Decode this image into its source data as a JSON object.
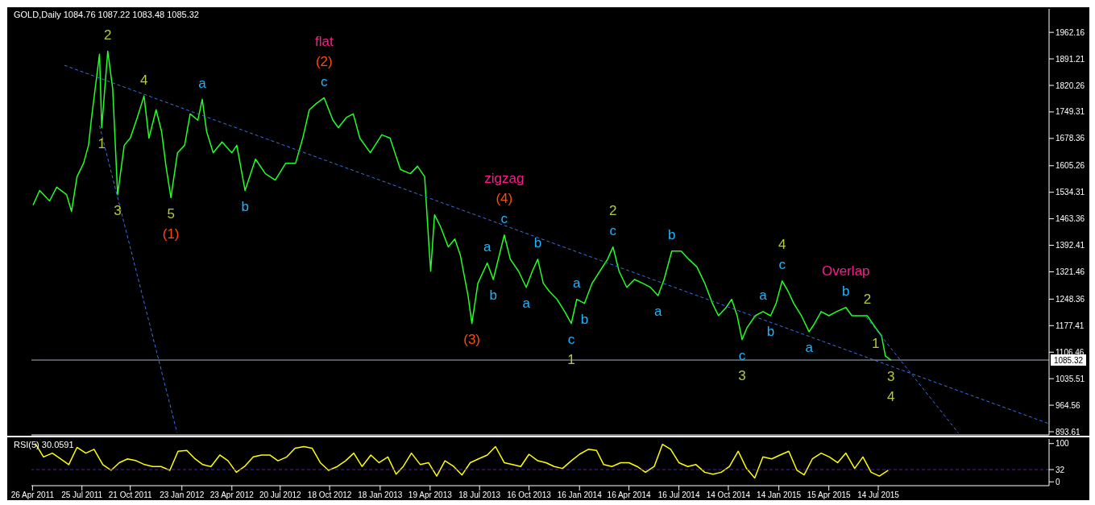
{
  "chart_data": [
    {
      "type": "line",
      "title": "GOLD,Daily 1084.76 1087.22 1083.48 1085.32",
      "marker": "none",
      "tick_labels": "y",
      "xlim": [
        "2011-04-24",
        "2016-05-20"
      ],
      "ylim": [
        885,
        2025
      ],
      "yticks": [
        893.61,
        964.56,
        1035.51,
        1106.46,
        1177.41,
        1248.36,
        1321.46,
        1392.41,
        1463.36,
        1534.31,
        1605.26,
        1678.36,
        1749.31,
        1820.26,
        1891.21,
        1962.16
      ],
      "series": [
        {
          "color": "#22ff22",
          "line_style": "solid",
          "x": [
            "2011-04-27",
            "2011-05-09",
            "2011-05-27",
            "2011-06-09",
            "2011-06-27",
            "2011-07-06",
            "2011-07-16",
            "2011-07-28",
            "2011-08-06",
            "2011-08-11",
            "2011-08-18",
            "2011-08-26",
            "2011-08-30",
            "2011-09-10",
            "2011-09-19",
            "2011-09-28",
            "2011-10-10",
            "2011-10-21",
            "2011-11-03",
            "2011-11-15",
            "2011-11-24",
            "2011-12-07",
            "2011-12-17",
            "2011-12-25",
            "2012-01-03",
            "2012-01-15",
            "2012-01-28",
            "2012-02-07",
            "2012-02-21",
            "2012-02-29",
            "2012-03-08",
            "2012-03-20",
            "2012-04-05",
            "2012-04-23",
            "2012-05-02",
            "2012-05-17",
            "2012-06-05",
            "2012-06-23",
            "2012-07-11",
            "2012-07-30",
            "2012-08-17",
            "2012-08-30",
            "2012-09-11",
            "2012-09-24",
            "2012-10-08",
            "2012-10-24",
            "2012-11-03",
            "2012-11-18",
            "2012-11-30",
            "2012-12-12",
            "2012-12-31",
            "2013-01-21",
            "2013-02-05",
            "2013-02-24",
            "2013-03-14",
            "2013-03-27",
            "2013-04-09",
            "2013-04-17",
            "2013-04-20",
            "2013-04-27",
            "2013-05-08",
            "2013-05-22",
            "2013-06-03",
            "2013-06-13",
            "2013-06-27",
            "2013-07-04",
            "2013-07-15",
            "2013-08-01",
            "2013-08-12",
            "2013-09-01",
            "2013-09-12",
            "2013-09-27",
            "2013-10-11",
            "2013-10-22",
            "2013-11-01",
            "2013-11-11",
            "2013-11-22",
            "2013-12-06",
            "2013-12-20",
            "2014-01-01",
            "2014-01-11",
            "2014-01-25",
            "2014-02-08",
            "2014-02-22",
            "2014-03-08",
            "2014-03-18",
            "2014-03-29",
            "2014-04-12",
            "2014-04-26",
            "2014-05-11",
            "2014-05-25",
            "2014-06-08",
            "2014-06-19",
            "2014-07-03",
            "2014-07-20",
            "2014-08-03",
            "2014-08-18",
            "2014-09-01",
            "2014-09-15",
            "2014-09-26",
            "2014-10-10",
            "2014-10-20",
            "2014-10-30",
            "2014-11-08",
            "2014-11-17",
            "2014-12-02",
            "2014-12-16",
            "2014-12-30",
            "2015-01-09",
            "2015-01-20",
            "2015-01-31",
            "2015-02-10",
            "2015-02-24",
            "2015-03-10",
            "2015-03-20",
            "2015-04-01",
            "2015-04-15",
            "2015-04-29",
            "2015-05-16",
            "2015-05-27",
            "2015-06-10",
            "2015-06-24",
            "2015-07-09",
            "2015-07-20",
            "2015-07-27",
            "2015-08-06"
          ],
          "values": [
            1500,
            1539,
            1511,
            1548,
            1528,
            1483,
            1576,
            1612,
            1660,
            1727,
            1811,
            1904,
            1707,
            1912,
            1811,
            1528,
            1660,
            1679,
            1735,
            1792,
            1679,
            1755,
            1697,
            1604,
            1520,
            1640,
            1660,
            1744,
            1727,
            1783,
            1697,
            1640,
            1669,
            1640,
            1660,
            1539,
            1623,
            1584,
            1567,
            1612,
            1612,
            1679,
            1755,
            1772,
            1787,
            1727,
            1707,
            1735,
            1744,
            1679,
            1640,
            1688,
            1679,
            1595,
            1584,
            1604,
            1576,
            1388,
            1323,
            1474,
            1442,
            1388,
            1409,
            1366,
            1258,
            1183,
            1291,
            1345,
            1301,
            1420,
            1355,
            1323,
            1280,
            1323,
            1355,
            1291,
            1269,
            1248,
            1215,
            1183,
            1248,
            1237,
            1291,
            1323,
            1355,
            1388,
            1323,
            1280,
            1301,
            1291,
            1280,
            1258,
            1301,
            1377,
            1377,
            1355,
            1334,
            1291,
            1237,
            1204,
            1226,
            1248,
            1204,
            1140,
            1172,
            1204,
            1215,
            1204,
            1237,
            1297,
            1269,
            1237,
            1204,
            1161,
            1183,
            1215,
            1204,
            1215,
            1226,
            1204,
            1204,
            1204,
            1172,
            1150,
            1096,
            1085.32
          ]
        },
        {
          "color": "#3d6fe8",
          "line_style": "dashed",
          "x": [
            "2011-06-23",
            "2016-05-20"
          ],
          "values": [
            1874,
            915
          ]
        },
        {
          "color": "#3d6fe8",
          "line_style": "dashed",
          "x": [
            "2011-08-26",
            "2012-01-14"
          ],
          "values": [
            1712,
            892
          ]
        },
        {
          "color": "#3d6fe8",
          "line_style": "dashed",
          "x": [
            "2015-06-22",
            "2015-12-07"
          ],
          "values": [
            1200,
            890
          ]
        }
      ],
      "ref_lines": [
        {
          "axis": "y",
          "value": 1085.32,
          "label": "1085.32",
          "color": "#a8b0c0"
        }
      ],
      "annotations": [
        {
          "text": "c",
          "x": "2012-10-08",
          "y": 1787
        },
        {
          "text": "(2)",
          "x": "2012-10-08",
          "y": 1787
        },
        "flat",
        {
          "text": "1",
          "x": "2011-08-30",
          "y": 1707
        },
        {
          "text": "2",
          "x": "2011-09-10",
          "y": 1912
        },
        {
          "text": "4",
          "x": "2011-11-15",
          "y": 1792
        },
        {
          "text": "a",
          "x": "2012-02-29",
          "y": 1783
        },
        {
          "text": "3",
          "x": "2011-09-28",
          "y": 1528
        },
        {
          "text": "5",
          "x": "2012-01-03",
          "y": 1520
        },
        {
          "text": "(1)",
          "x": "2012-01-03",
          "y": 1520
        },
        {
          "text": "b",
          "x": "2012-05-17",
          "y": 1539
        },
        {
          "text": "c",
          "x": "2013-09-01",
          "y": 1420
        },
        {
          "text": "(4)",
          "x": "2013-09-01",
          "y": 1420
        },
        "zigzag",
        {
          "text": "a",
          "x": "2013-08-01",
          "y": 1345
        },
        {
          "text": "b",
          "x": "2013-08-12",
          "y": 1301
        },
        {
          "text": "(3)",
          "x": "2013-07-04",
          "y": 1183
        },
        {
          "text": "b",
          "x": "2013-11-01",
          "y": 1355
        },
        {
          "text": "a",
          "x": "2013-10-11",
          "y": 1280
        },
        {
          "text": "c",
          "x": "2014-01-01",
          "y": 1183
        },
        {
          "text": "1",
          "x": "2014-01-01",
          "y": 1183
        },
        {
          "text": "a",
          "x": "2014-01-11",
          "y": 1248
        },
        {
          "text": "b",
          "x": "2014-01-25",
          "y": 1237
        },
        {
          "text": "c",
          "x": "2014-03-18",
          "y": 1388
        },
        {
          "text": "2",
          "x": "2014-03-18",
          "y": 1388
        },
        {
          "text": "b",
          "x": "2014-07-03",
          "y": 1377
        },
        {
          "text": "a",
          "x": "2014-06-08",
          "y": 1258
        },
        {
          "text": "c",
          "x": "2014-11-08",
          "y": 1140
        },
        {
          "text": "3",
          "x": "2014-11-08",
          "y": 1140
        },
        {
          "text": "a",
          "x": "2014-12-16",
          "y": 1215
        },
        {
          "text": "b",
          "x": "2014-12-30",
          "y": 1204
        },
        {
          "text": "c",
          "x": "2015-01-20",
          "y": 1297
        },
        {
          "text": "4",
          "x": "2015-01-20",
          "y": 1297
        },
        {
          "text": "a",
          "x": "2015-03-10",
          "y": 1161
        },
        {
          "text": "b",
          "x": "2015-05-16",
          "y": 1226
        },
        "Overlap",
        {
          "text": "2",
          "x": "2015-06-24",
          "y": 1204
        },
        {
          "text": "1",
          "x": "2015-07-09",
          "y": 1172
        },
        {
          "text": "3",
          "x": "2015-08-06",
          "y": 1085.32
        },
        {
          "text": "4",
          "x": "2015-08-06",
          "y": 1085.32
        }
      ]
    },
    {
      "type": "line",
      "title": "RSI(5) 30.0591",
      "marker": "none",
      "xlim": [
        "2011-04-24",
        "2016-05-20"
      ],
      "ylim": [
        -10,
        112
      ],
      "yticks": [
        0,
        32,
        100
      ],
      "xticks": [
        {
          "value": "2011-04-26",
          "label": "26 Apr 2011"
        },
        {
          "value": "2011-07-25",
          "label": "25 Jul 2011"
        },
        {
          "value": "2011-10-21",
          "label": "21 Oct 2011"
        },
        {
          "value": "2012-01-23",
          "label": "23 Jan 2012"
        },
        {
          "value": "2012-04-23",
          "label": "23 Apr 2012"
        },
        {
          "value": "2012-07-20",
          "label": "20 Jul 2012"
        },
        {
          "value": "2012-10-18",
          "label": "18 Oct 2012"
        },
        {
          "value": "2013-01-18",
          "label": "18 Jan 2013"
        },
        {
          "value": "2013-04-19",
          "label": "19 Apr 2013"
        },
        {
          "value": "2013-07-18",
          "label": "18 Jul 2013"
        },
        {
          "value": "2013-10-16",
          "label": "16 Oct 2013"
        },
        {
          "value": "2014-01-16",
          "label": "16 Jan 2014"
        },
        {
          "value": "2014-04-16",
          "label": "16 Apr 2014"
        },
        {
          "value": "2014-07-16",
          "label": "16 Jul 2014"
        },
        {
          "value": "2014-10-14",
          "label": "14 Oct 2014"
        },
        {
          "value": "2015-01-14",
          "label": "14 Jan 2015"
        },
        {
          "value": "2015-04-15",
          "label": "15 Apr 2015"
        },
        {
          "value": "2015-07-14",
          "label": "14 Jul 2015"
        }
      ],
      "series": [
        {
          "color": "#ffff00",
          "line_style": "solid",
          "x": [
            "2011-05-01",
            "2011-05-16",
            "2011-06-01",
            "2011-06-16",
            "2011-07-01",
            "2011-07-16",
            "2011-08-01",
            "2011-08-16",
            "2011-09-01",
            "2011-09-16",
            "2011-10-01",
            "2011-10-16",
            "2011-11-01",
            "2011-11-16",
            "2011-12-01",
            "2011-12-16",
            "2012-01-01",
            "2012-01-16",
            "2012-02-01",
            "2012-02-16",
            "2012-03-01",
            "2012-03-16",
            "2012-04-01",
            "2012-04-16",
            "2012-05-01",
            "2012-05-16",
            "2012-06-01",
            "2012-06-16",
            "2012-07-01",
            "2012-07-16",
            "2012-08-01",
            "2012-08-16",
            "2012-09-01",
            "2012-09-16",
            "2012-10-01",
            "2012-10-16",
            "2012-11-01",
            "2012-11-16",
            "2012-12-01",
            "2012-12-16",
            "2013-01-01",
            "2013-01-16",
            "2013-02-01",
            "2013-02-16",
            "2013-03-01",
            "2013-03-16",
            "2013-04-01",
            "2013-04-16",
            "2013-05-01",
            "2013-05-16",
            "2013-06-01",
            "2013-06-16",
            "2013-07-01",
            "2013-07-16",
            "2013-08-01",
            "2013-08-16",
            "2013-09-01",
            "2013-09-16",
            "2013-10-01",
            "2013-10-16",
            "2013-11-01",
            "2013-11-16",
            "2013-12-01",
            "2013-12-16",
            "2014-01-01",
            "2014-01-16",
            "2014-02-01",
            "2014-02-16",
            "2014-03-01",
            "2014-03-16",
            "2014-04-01",
            "2014-04-16",
            "2014-05-01",
            "2014-05-16",
            "2014-06-01",
            "2014-06-16",
            "2014-07-01",
            "2014-07-16",
            "2014-08-01",
            "2014-08-16",
            "2014-09-01",
            "2014-09-16",
            "2014-10-01",
            "2014-10-16",
            "2014-11-01",
            "2014-11-16",
            "2014-12-01",
            "2014-12-16",
            "2015-01-01",
            "2015-01-16",
            "2015-02-01",
            "2015-02-16",
            "2015-03-01",
            "2015-03-16",
            "2015-04-01",
            "2015-04-16",
            "2015-05-01",
            "2015-05-16",
            "2015-06-01",
            "2015-06-16",
            "2015-07-01",
            "2015-07-16",
            "2015-08-01"
          ],
          "values": [
            100,
            65,
            75,
            60,
            45,
            90,
            75,
            85,
            45,
            30,
            50,
            60,
            55,
            45,
            40,
            40,
            30,
            80,
            82,
            60,
            45,
            40,
            70,
            55,
            25,
            40,
            65,
            70,
            70,
            55,
            65,
            88,
            92,
            88,
            50,
            30,
            40,
            55,
            75,
            40,
            70,
            50,
            65,
            20,
            40,
            75,
            45,
            50,
            15,
            55,
            40,
            18,
            50,
            60,
            70,
            92,
            50,
            45,
            40,
            72,
            55,
            50,
            40,
            35,
            55,
            72,
            85,
            82,
            45,
            40,
            50,
            50,
            40,
            25,
            40,
            98,
            85,
            50,
            40,
            45,
            25,
            20,
            25,
            40,
            80,
            35,
            10,
            65,
            60,
            70,
            80,
            30,
            18,
            60,
            75,
            65,
            50,
            75,
            35,
            65,
            25,
            15,
            30
          ]
        }
      ],
      "ref_lines": [
        {
          "axis": "y",
          "value": 32,
          "color": "#5a1ea0",
          "line_style": "dashed"
        }
      ]
    }
  ]
}
